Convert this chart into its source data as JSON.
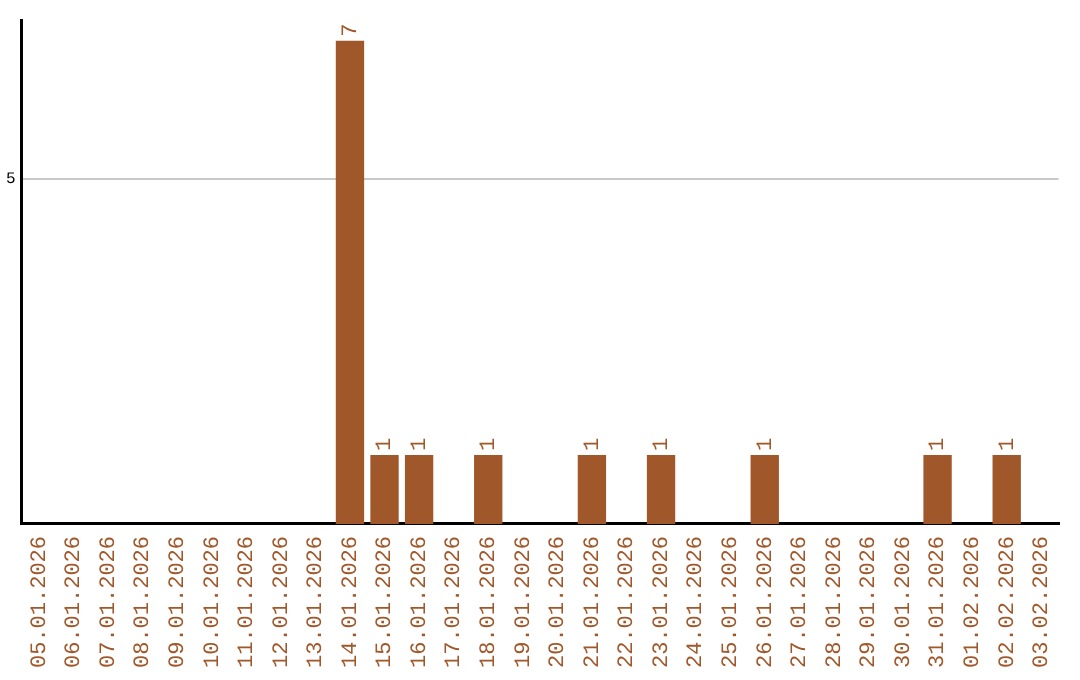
{
  "chart_data": {
    "type": "bar",
    "categories": [
      "05.01.2026",
      "06.01.2026",
      "07.01.2026",
      "08.01.2026",
      "09.01.2026",
      "10.01.2026",
      "11.01.2026",
      "12.01.2026",
      "13.01.2026",
      "14.01.2026",
      "15.01.2026",
      "16.01.2026",
      "17.01.2026",
      "18.01.2026",
      "19.01.2026",
      "20.01.2026",
      "21.01.2026",
      "22.01.2026",
      "23.01.2026",
      "24.01.2026",
      "25.01.2026",
      "26.01.2026",
      "27.01.2026",
      "28.01.2026",
      "29.01.2026",
      "30.01.2026",
      "31.01.2026",
      "01.02.2026",
      "02.02.2026",
      "03.02.2026"
    ],
    "values": [
      0,
      0,
      0,
      0,
      0,
      0,
      0,
      0,
      0,
      7,
      1,
      1,
      0,
      1,
      0,
      0,
      1,
      0,
      1,
      0,
      0,
      1,
      0,
      0,
      0,
      0,
      1,
      0,
      1,
      0
    ],
    "value_labels": [
      null,
      null,
      null,
      null,
      null,
      null,
      null,
      null,
      null,
      "7",
      "1",
      "1",
      null,
      "1",
      null,
      null,
      "1",
      null,
      "1",
      null,
      null,
      "1",
      null,
      null,
      null,
      null,
      "1",
      null,
      "1",
      null
    ],
    "color": "#a0582a",
    "ylim": [
      0,
      7.3
    ],
    "yticks": [
      5
    ],
    "grid": "y",
    "legend": false
  }
}
